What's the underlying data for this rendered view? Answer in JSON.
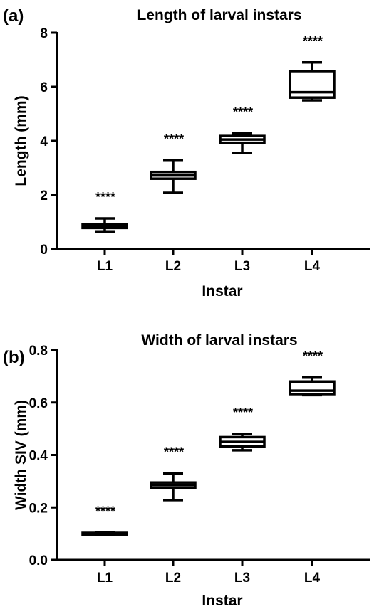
{
  "chart_data": [
    {
      "type": "box",
      "panel_label": "(a)",
      "title": "Length of larval instars",
      "xlabel": "Instar",
      "ylabel": "Length (mm)",
      "ylim": [
        0,
        8
      ],
      "yticks": [
        "0",
        "2",
        "4",
        "6",
        "8"
      ],
      "categories": [
        "L1",
        "L2",
        "L3",
        "L4"
      ],
      "boxes": [
        {
          "category": "L1",
          "min": 0.65,
          "q1": 0.78,
          "median": 0.85,
          "q3": 0.92,
          "max": 1.13
        },
        {
          "category": "L2",
          "min": 2.08,
          "q1": 2.6,
          "median": 2.72,
          "q3": 2.85,
          "max": 3.27
        },
        {
          "category": "L3",
          "min": 3.55,
          "q1": 3.93,
          "median": 4.05,
          "q3": 4.18,
          "max": 4.27
        },
        {
          "category": "L4",
          "min": 5.5,
          "q1": 5.6,
          "median": 5.8,
          "q3": 6.58,
          "max": 6.9
        }
      ],
      "annotations": [
        "****",
        "****",
        "****",
        "****"
      ]
    },
    {
      "type": "box",
      "panel_label": "(b)",
      "title": "Width of larval instars",
      "xlabel": "Instar",
      "ylabel": "Width SIV (mm)",
      "ylim": [
        0,
        0.8
      ],
      "yticks": [
        "0.0",
        "0.2",
        "0.4",
        "0.6",
        "0.8"
      ],
      "categories": [
        "L1",
        "L2",
        "L3",
        "L4"
      ],
      "boxes": [
        {
          "category": "L1",
          "min": 0.095,
          "q1": 0.097,
          "median": 0.1,
          "q3": 0.103,
          "max": 0.105
        },
        {
          "category": "L2",
          "min": 0.228,
          "q1": 0.275,
          "median": 0.285,
          "q3": 0.295,
          "max": 0.33
        },
        {
          "category": "L3",
          "min": 0.418,
          "q1": 0.432,
          "median": 0.45,
          "q3": 0.468,
          "max": 0.48
        },
        {
          "category": "L4",
          "min": 0.628,
          "q1": 0.632,
          "median": 0.645,
          "q3": 0.68,
          "max": 0.695
        }
      ],
      "annotations": [
        "****",
        "****",
        "****",
        "****"
      ]
    }
  ]
}
